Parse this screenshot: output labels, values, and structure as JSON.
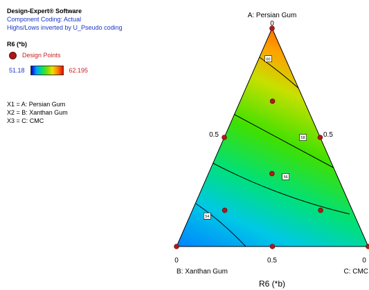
{
  "panel": {
    "software": "Design-Expert® Software",
    "coding": "Component Coding: Actual",
    "highs_lows": "Highs/Lows inverted by U_Pseudo coding",
    "response": "R6 (*b)",
    "design_points_label": "Design Points",
    "scale_min": "51.18",
    "scale_max": "62.195",
    "factors": [
      "X1 = A: Persian Gum",
      "X2 = B: Xanthan Gum",
      "X3 = C: CMC"
    ]
  },
  "colors": {
    "blue_text": "#1a36c8",
    "red_text": "#c82020",
    "design_point": "#b01818"
  },
  "chart_data": {
    "type": "ternary contour",
    "title": "R6 (*b)",
    "vertices": {
      "top": {
        "label": "A: Persian Gum",
        "value_label": "0"
      },
      "left": {
        "label": "B: Xanthan Gum",
        "value_label": "0"
      },
      "right": {
        "label": "C: CMC",
        "value_label": "0"
      }
    },
    "edge_tick_labels": {
      "left_edge": "0.5",
      "right_edge": "0.5",
      "bottom_edge": "0.5"
    },
    "response_range": [
      51.18,
      62.195
    ],
    "contour_labels": [
      {
        "label": "60",
        "a": 0.86,
        "b": 0.09,
        "c": 0.05
      },
      {
        "label": "58",
        "a": 0.5,
        "b": 0.09,
        "c": 0.41
      },
      {
        "label": "56",
        "a": 0.32,
        "b": 0.27,
        "c": 0.41
      },
      {
        "label": "54",
        "a": 0.14,
        "b": 0.77,
        "c": 0.09
      }
    ],
    "design_points": [
      {
        "a": 1.0,
        "b": 0.0,
        "c": 0.0
      },
      {
        "a": 0.0,
        "b": 1.0,
        "c": 0.0
      },
      {
        "a": 0.0,
        "b": 0.0,
        "c": 1.0
      },
      {
        "a": 0.5,
        "b": 0.5,
        "c": 0.0
      },
      {
        "a": 0.5,
        "b": 0.0,
        "c": 0.5
      },
      {
        "a": 0.0,
        "b": 0.5,
        "c": 0.5
      },
      {
        "a": 0.667,
        "b": 0.167,
        "c": 0.167
      },
      {
        "a": 0.167,
        "b": 0.667,
        "c": 0.167
      },
      {
        "a": 0.167,
        "b": 0.167,
        "c": 0.667
      },
      {
        "a": 0.333,
        "b": 0.333,
        "c": 0.333
      }
    ]
  }
}
